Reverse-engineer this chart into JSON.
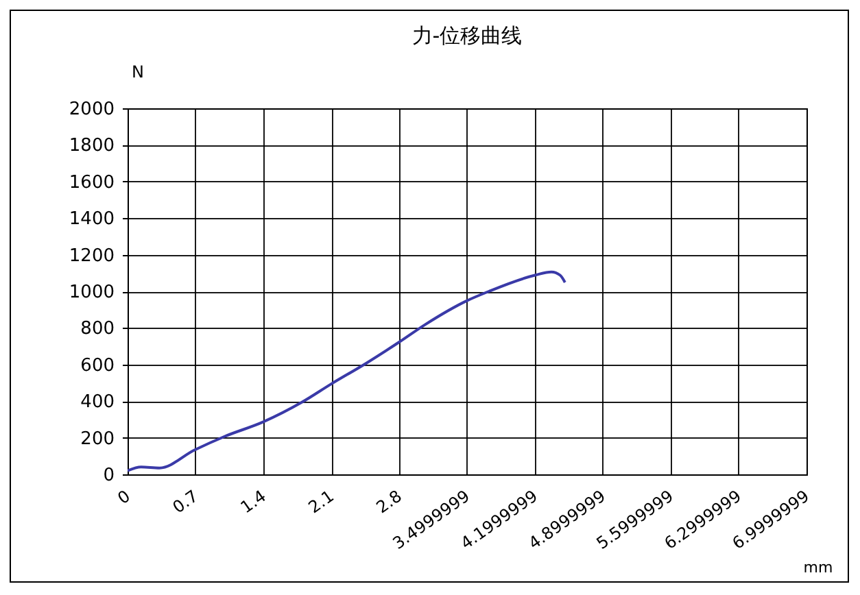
{
  "chart_data": {
    "type": "line",
    "title": "力-位移曲线",
    "xlabel": "mm",
    "ylabel": "N",
    "xlim": [
      0,
      7
    ],
    "xticks": [
      0,
      0.7,
      1.4,
      2.1,
      2.8,
      3.4999999,
      4.1999999,
      4.8999999,
      5.5999999,
      6.2999999,
      6.9999999
    ],
    "ylim": [
      0,
      2000
    ],
    "yticks": [
      0,
      200,
      400,
      600,
      800,
      1000,
      1200,
      1400,
      1600,
      1800,
      2000
    ],
    "grid": true,
    "series": [
      {
        "color": "#3a3aa8",
        "x": [
          0,
          0.14,
          0.33,
          0.69,
          1.0,
          1.4,
          1.8,
          2.1,
          2.46,
          2.79,
          3.07,
          3.5,
          3.73,
          4.2,
          4.37,
          4.46,
          4.51
        ],
        "values": [
          20,
          40,
          35,
          133,
          207,
          287,
          395,
          494,
          607,
          719,
          819,
          949,
          1001,
          1088,
          1106,
          1088,
          1049
        ]
      }
    ]
  }
}
